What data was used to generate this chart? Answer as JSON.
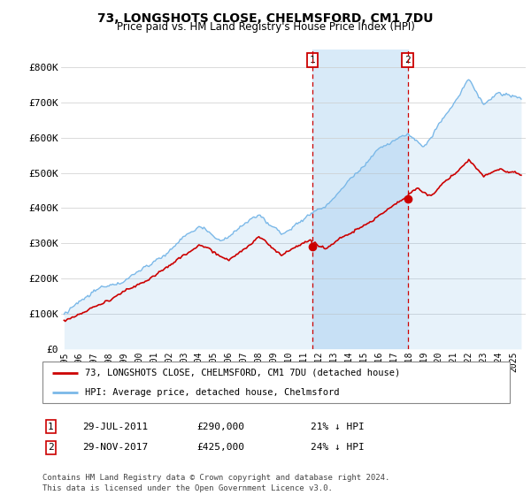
{
  "title": "73, LONGSHOTS CLOSE, CHELMSFORD, CM1 7DU",
  "subtitle": "Price paid vs. HM Land Registry's House Price Index (HPI)",
  "hpi_color": "#7ab8e8",
  "hpi_fill_color": "#d8eaf8",
  "price_color": "#cc0000",
  "annotation_color": "#cc0000",
  "legend_label_red": "73, LONGSHOTS CLOSE, CHELMSFORD, CM1 7DU (detached house)",
  "legend_label_blue": "HPI: Average price, detached house, Chelmsford",
  "annotation1_date": "29-JUL-2011",
  "annotation1_price": "£290,000",
  "annotation1_note": "21% ↓ HPI",
  "annotation2_date": "29-NOV-2017",
  "annotation2_price": "£425,000",
  "annotation2_note": "24% ↓ HPI",
  "footer": "Contains HM Land Registry data © Crown copyright and database right 2024.\nThis data is licensed under the Open Government Licence v3.0.",
  "ylim": [
    0,
    850000
  ],
  "yticks": [
    0,
    100000,
    200000,
    300000,
    400000,
    500000,
    600000,
    700000,
    800000
  ],
  "ytick_labels": [
    "£0",
    "£100K",
    "£200K",
    "£300K",
    "£400K",
    "£500K",
    "£600K",
    "£700K",
    "£800K"
  ],
  "sale1_year": 2011.57,
  "sale1_price": 290000,
  "sale2_year": 2017.92,
  "sale2_price": 425000,
  "xmin": 1994.8,
  "xmax": 2025.8
}
